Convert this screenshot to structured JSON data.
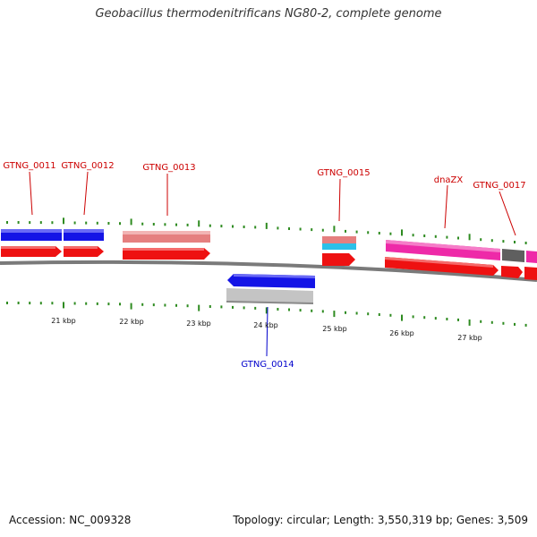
{
  "title": "Geobacillus thermodenitrificans NG80-2, complete genome",
  "footer": {
    "accession": "Accession: NC_009328",
    "summary": "Topology: circular; Length: 3,550,319 bp; Genes: 3,509"
  },
  "colors": {
    "backbone": "#7a7a7a",
    "cds_red": "#ee1111",
    "cds_blue": "#1414e6",
    "pink": "#e57f7f",
    "magenta": "#ee2aa8",
    "gray_gene": "#5f5f5f",
    "light_gray": "#c4c4c4",
    "cyan": "#2cc0e8",
    "tick": "#2e8b20",
    "label_red": "#cc0000",
    "label_blue": "#0000cc"
  },
  "kbp_labels": [
    "21 kbp",
    "22 kbp",
    "23 kbp",
    "24 kbp",
    "25 kbp",
    "26 kbp",
    "27 kbp"
  ],
  "gene_labels": [
    {
      "text": "GTNG_0011",
      "color": "label_red"
    },
    {
      "text": "GTNG_0012",
      "color": "label_red"
    },
    {
      "text": "GTNG_0013",
      "color": "label_red"
    },
    {
      "text": "GTNG_0015",
      "color": "label_red"
    },
    {
      "text": "dnaZX",
      "color": "label_red"
    },
    {
      "text": "GTNG_0017",
      "color": "label_red"
    },
    {
      "text": "GTNG_0014",
      "color": "label_blue"
    }
  ]
}
